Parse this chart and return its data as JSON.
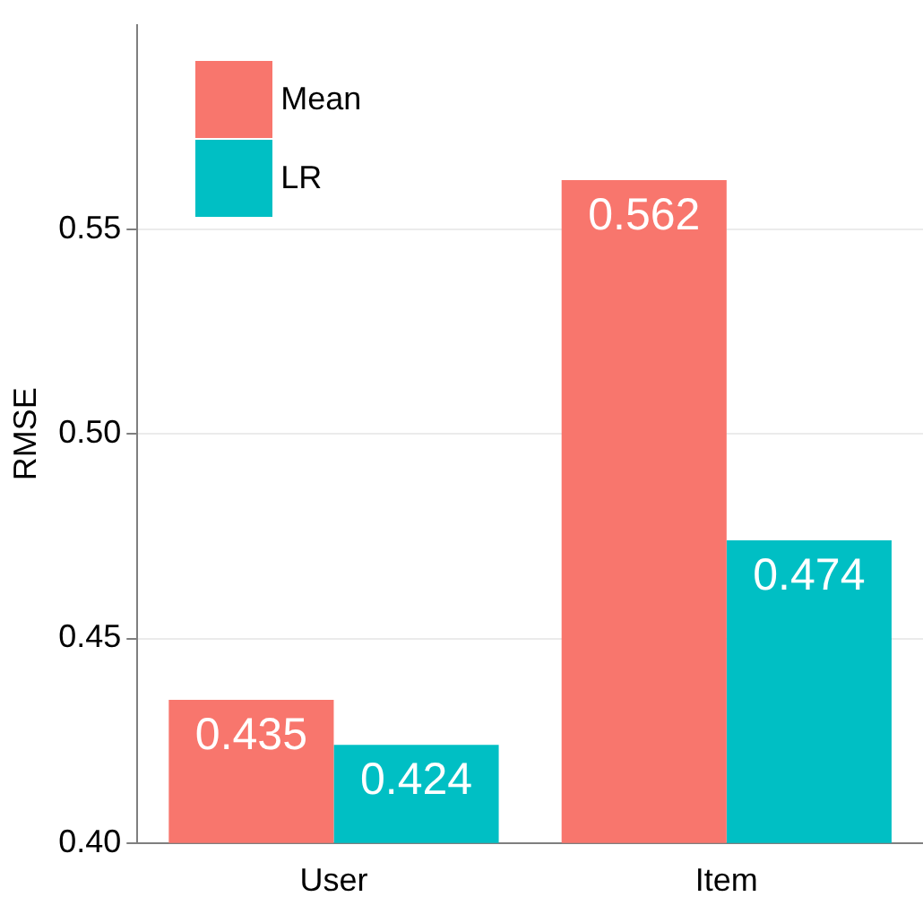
{
  "chart_data": {
    "type": "bar",
    "ylabel": "RMSE",
    "categories": [
      "User",
      "Item"
    ],
    "series": [
      {
        "name": "Mean",
        "color": "#f8766d",
        "values": [
          0.435,
          0.562
        ]
      },
      {
        "name": "LR",
        "color": "#00bfc4",
        "values": [
          0.424,
          0.474
        ]
      }
    ],
    "ylim": [
      0.4,
      0.6
    ],
    "yticks": [
      {
        "value": 0.4,
        "label": "0.40"
      },
      0.45,
      {
        "value": 0.5,
        "label": "0.50"
      },
      0.55
    ],
    "grid": "y",
    "legend": "top left",
    "data_labels": true
  }
}
